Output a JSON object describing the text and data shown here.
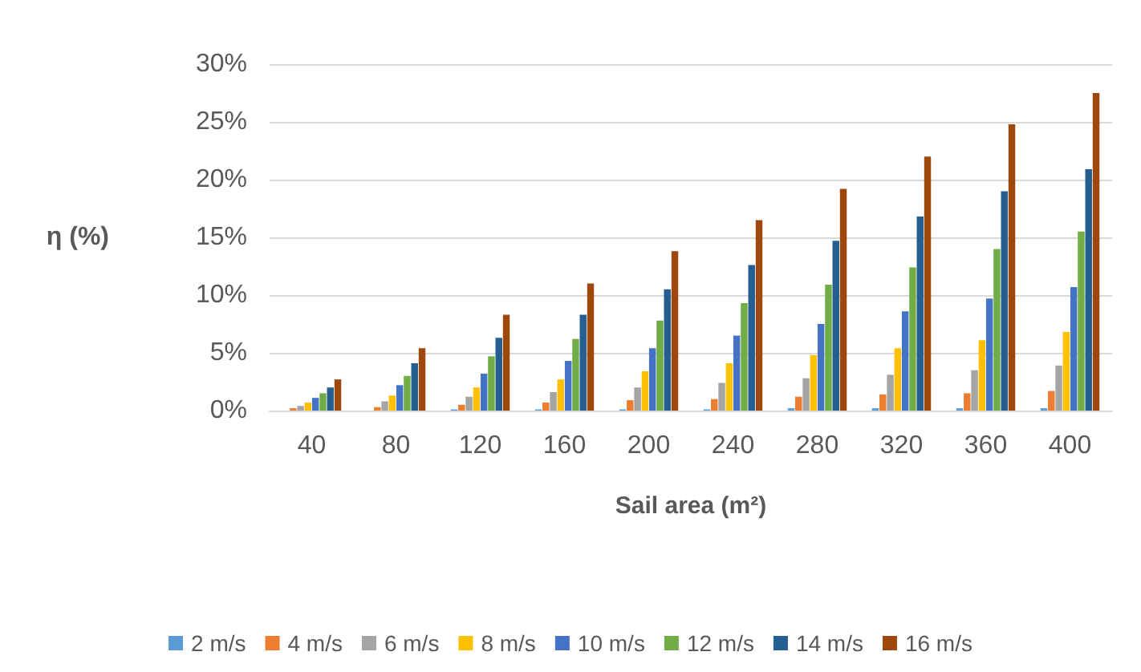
{
  "chart_data": {
    "type": "bar",
    "xlabel": "Sail area (m²)",
    "ylabel": "η (%)",
    "categories": [
      "40",
      "80",
      "120",
      "160",
      "200",
      "240",
      "280",
      "320",
      "360",
      "400"
    ],
    "series": [
      {
        "name": "2 m/s",
        "color": "#5b9bd5",
        "values": [
          0,
          0,
          0.1,
          0.1,
          0.1,
          0.1,
          0.2,
          0.2,
          0.2,
          0.2
        ]
      },
      {
        "name": "4 m/s",
        "color": "#ed7d31",
        "values": [
          0.2,
          0.3,
          0.5,
          0.7,
          0.9,
          1.0,
          1.2,
          1.4,
          1.5,
          1.7
        ]
      },
      {
        "name": "6 m/s",
        "color": "#a5a5a5",
        "values": [
          0.4,
          0.8,
          1.2,
          1.6,
          2.0,
          2.4,
          2.8,
          3.1,
          3.5,
          3.9
        ]
      },
      {
        "name": "8 m/s",
        "color": "#ffc000",
        "values": [
          0.7,
          1.3,
          2.0,
          2.7,
          3.4,
          4.1,
          4.8,
          5.4,
          6.1,
          6.8
        ]
      },
      {
        "name": "10 m/s",
        "color": "#4472c4",
        "values": [
          1.1,
          2.2,
          3.2,
          4.3,
          5.4,
          6.5,
          7.5,
          8.6,
          9.7,
          10.7
        ]
      },
      {
        "name": "12 m/s",
        "color": "#70ad47",
        "values": [
          1.5,
          3.0,
          4.7,
          6.2,
          7.8,
          9.3,
          10.9,
          12.4,
          14.0,
          15.5
        ]
      },
      {
        "name": "14 m/s",
        "color": "#255e91",
        "values": [
          2.0,
          4.1,
          6.3,
          8.3,
          10.5,
          12.6,
          14.7,
          16.8,
          19.0,
          20.9
        ]
      },
      {
        "name": "16 m/s",
        "color": "#9e480e",
        "values": [
          2.7,
          5.4,
          8.3,
          11.0,
          13.8,
          16.5,
          19.2,
          22.0,
          24.8,
          27.5
        ]
      }
    ],
    "ylim": [
      0,
      30
    ],
    "yticks": [
      {
        "value": 0,
        "label": "0%"
      },
      {
        "value": 5,
        "label": "5%"
      },
      {
        "value": 10,
        "label": "10%"
      },
      {
        "value": 15,
        "label": "15%"
      },
      {
        "value": 20,
        "label": "20%"
      },
      {
        "value": 25,
        "label": "25%"
      },
      {
        "value": 30,
        "label": "30%"
      }
    ],
    "grid": "y",
    "legend": "bottom"
  }
}
